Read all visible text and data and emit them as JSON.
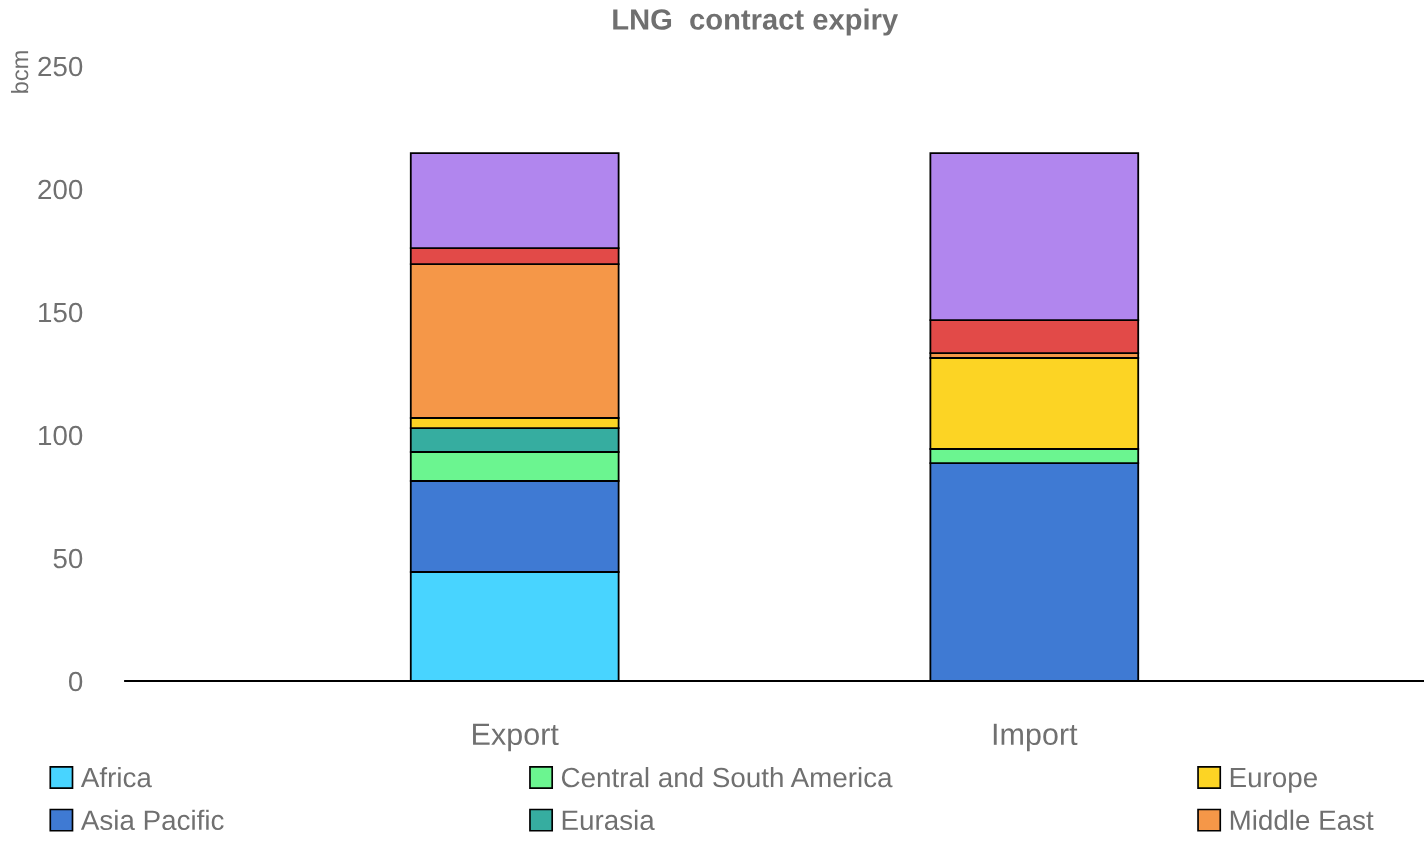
{
  "chart_data": {
    "type": "bar",
    "stacked": true,
    "title": "LNG  contract expiry",
    "ylabel": "bcm",
    "categories": [
      "Export",
      "Import"
    ],
    "series": [
      {
        "name": "Africa",
        "color": "#48d4ff",
        "values": [
          44.3,
          0
        ]
      },
      {
        "name": "Asia Pacific",
        "color": "#3f7ad3",
        "values": [
          37,
          88.6
        ]
      },
      {
        "name": "Central and South America",
        "color": "#6bf590",
        "values": [
          11.8,
          5.7
        ]
      },
      {
        "name": "Eurasia",
        "color": "#36ada0",
        "values": [
          9.7,
          0
        ]
      },
      {
        "name": "Europe",
        "color": "#fcd424",
        "values": [
          4.1,
          37
        ]
      },
      {
        "name": "Middle East",
        "color": "#f59748",
        "values": [
          62.6,
          2
        ]
      },
      {
        "color": "#e24a48",
        "values": [
          6.5,
          13.4
        ]
      },
      {
        "color": "#b186ee",
        "values": [
          38.6,
          67.9
        ]
      }
    ],
    "ylim": [
      0,
      250
    ],
    "yticks": [
      0,
      50,
      100,
      150,
      200,
      250
    ],
    "grid": false,
    "legend": "bottom"
  }
}
